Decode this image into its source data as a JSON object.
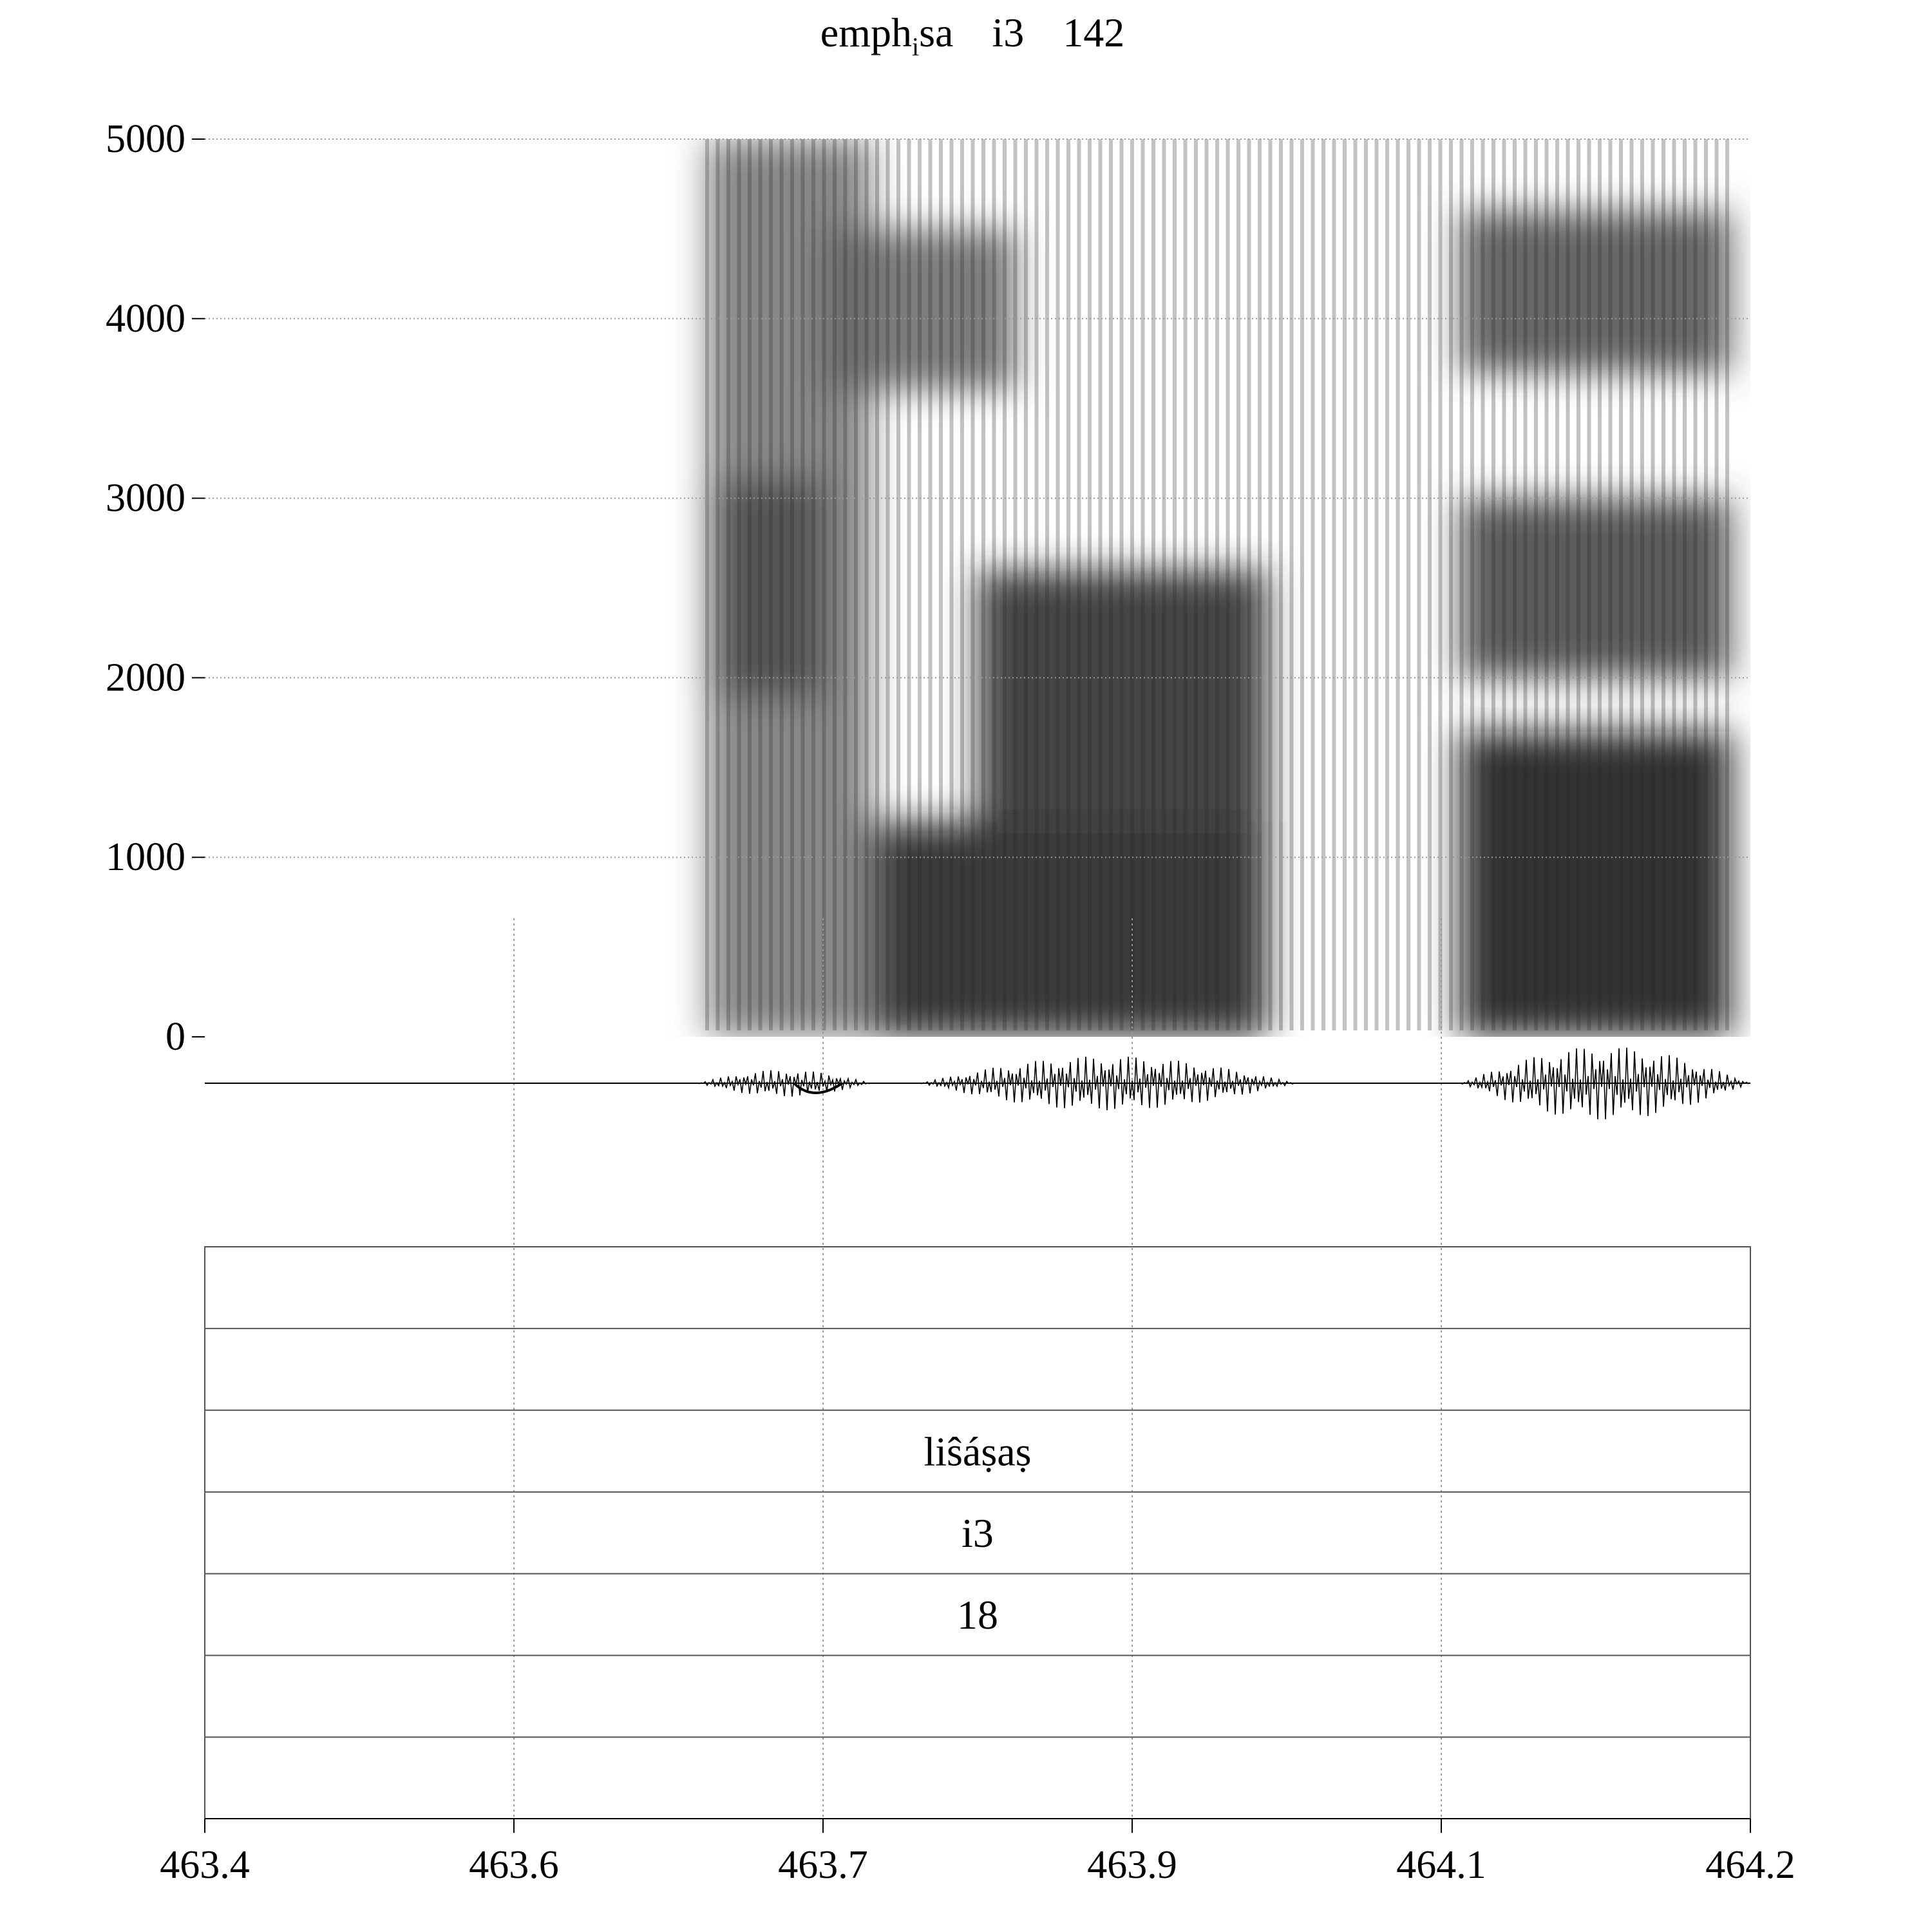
{
  "title": {
    "word": "emph",
    "subscript": "i",
    "word_end": "sa",
    "vowel": "i3",
    "number": "142"
  },
  "chart_data": {
    "type": "heatmap",
    "title": "emphᵢsa   i3   142",
    "xlabel": "",
    "ylabel": "",
    "xlim": [
      463.4,
      464.2
    ],
    "ylim": [
      0,
      5000
    ],
    "x_tick_labels": [
      "463.4",
      "463.6",
      "463.7",
      "463.9",
      "464.1",
      "464.2"
    ],
    "y_ticks": [
      0,
      1000,
      2000,
      3000,
      4000,
      5000
    ],
    "y_tick_labels": [
      "0",
      "1000",
      "2000",
      "3000",
      "4000",
      "5000"
    ],
    "grid": true,
    "colormap": "grayscale",
    "spectrogram_regions": [
      {
        "t0": 463.66,
        "t1": 463.745,
        "f0": 0,
        "f1": 5000,
        "intensity": 0.55
      },
      {
        "t0": 463.665,
        "t1": 463.72,
        "f0": 1900,
        "f1": 3100,
        "intensity": 0.7
      },
      {
        "t0": 463.745,
        "t1": 463.95,
        "f0": 0,
        "f1": 1200,
        "intensity": 0.9
      },
      {
        "t0": 463.8,
        "t1": 463.95,
        "f0": 1200,
        "f1": 2600,
        "intensity": 0.85
      },
      {
        "t0": 464.05,
        "t1": 464.19,
        "f0": 0,
        "f1": 1700,
        "intensity": 0.95
      },
      {
        "t0": 464.05,
        "t1": 464.19,
        "f0": 2000,
        "f1": 3000,
        "intensity": 0.75
      },
      {
        "t0": 464.05,
        "t1": 464.19,
        "f0": 3700,
        "f1": 4600,
        "intensity": 0.7
      },
      {
        "t0": 463.72,
        "t1": 463.82,
        "f0": 3600,
        "f1": 4500,
        "intensity": 0.6
      }
    ],
    "waveform_bursts": [
      {
        "t0": 463.655,
        "t1": 463.745,
        "amplitude": 0.35
      },
      {
        "t0": 463.77,
        "t1": 463.965,
        "amplitude": 0.7
      },
      {
        "t0": 464.05,
        "t1": 464.2,
        "amplitude": 0.95
      }
    ]
  },
  "tiers": [
    {
      "label": ""
    },
    {
      "label": ""
    },
    {
      "label": "liŝáṣaṣ"
    },
    {
      "label": "i3"
    },
    {
      "label": "18"
    },
    {
      "label": ""
    },
    {
      "label": ""
    }
  ]
}
